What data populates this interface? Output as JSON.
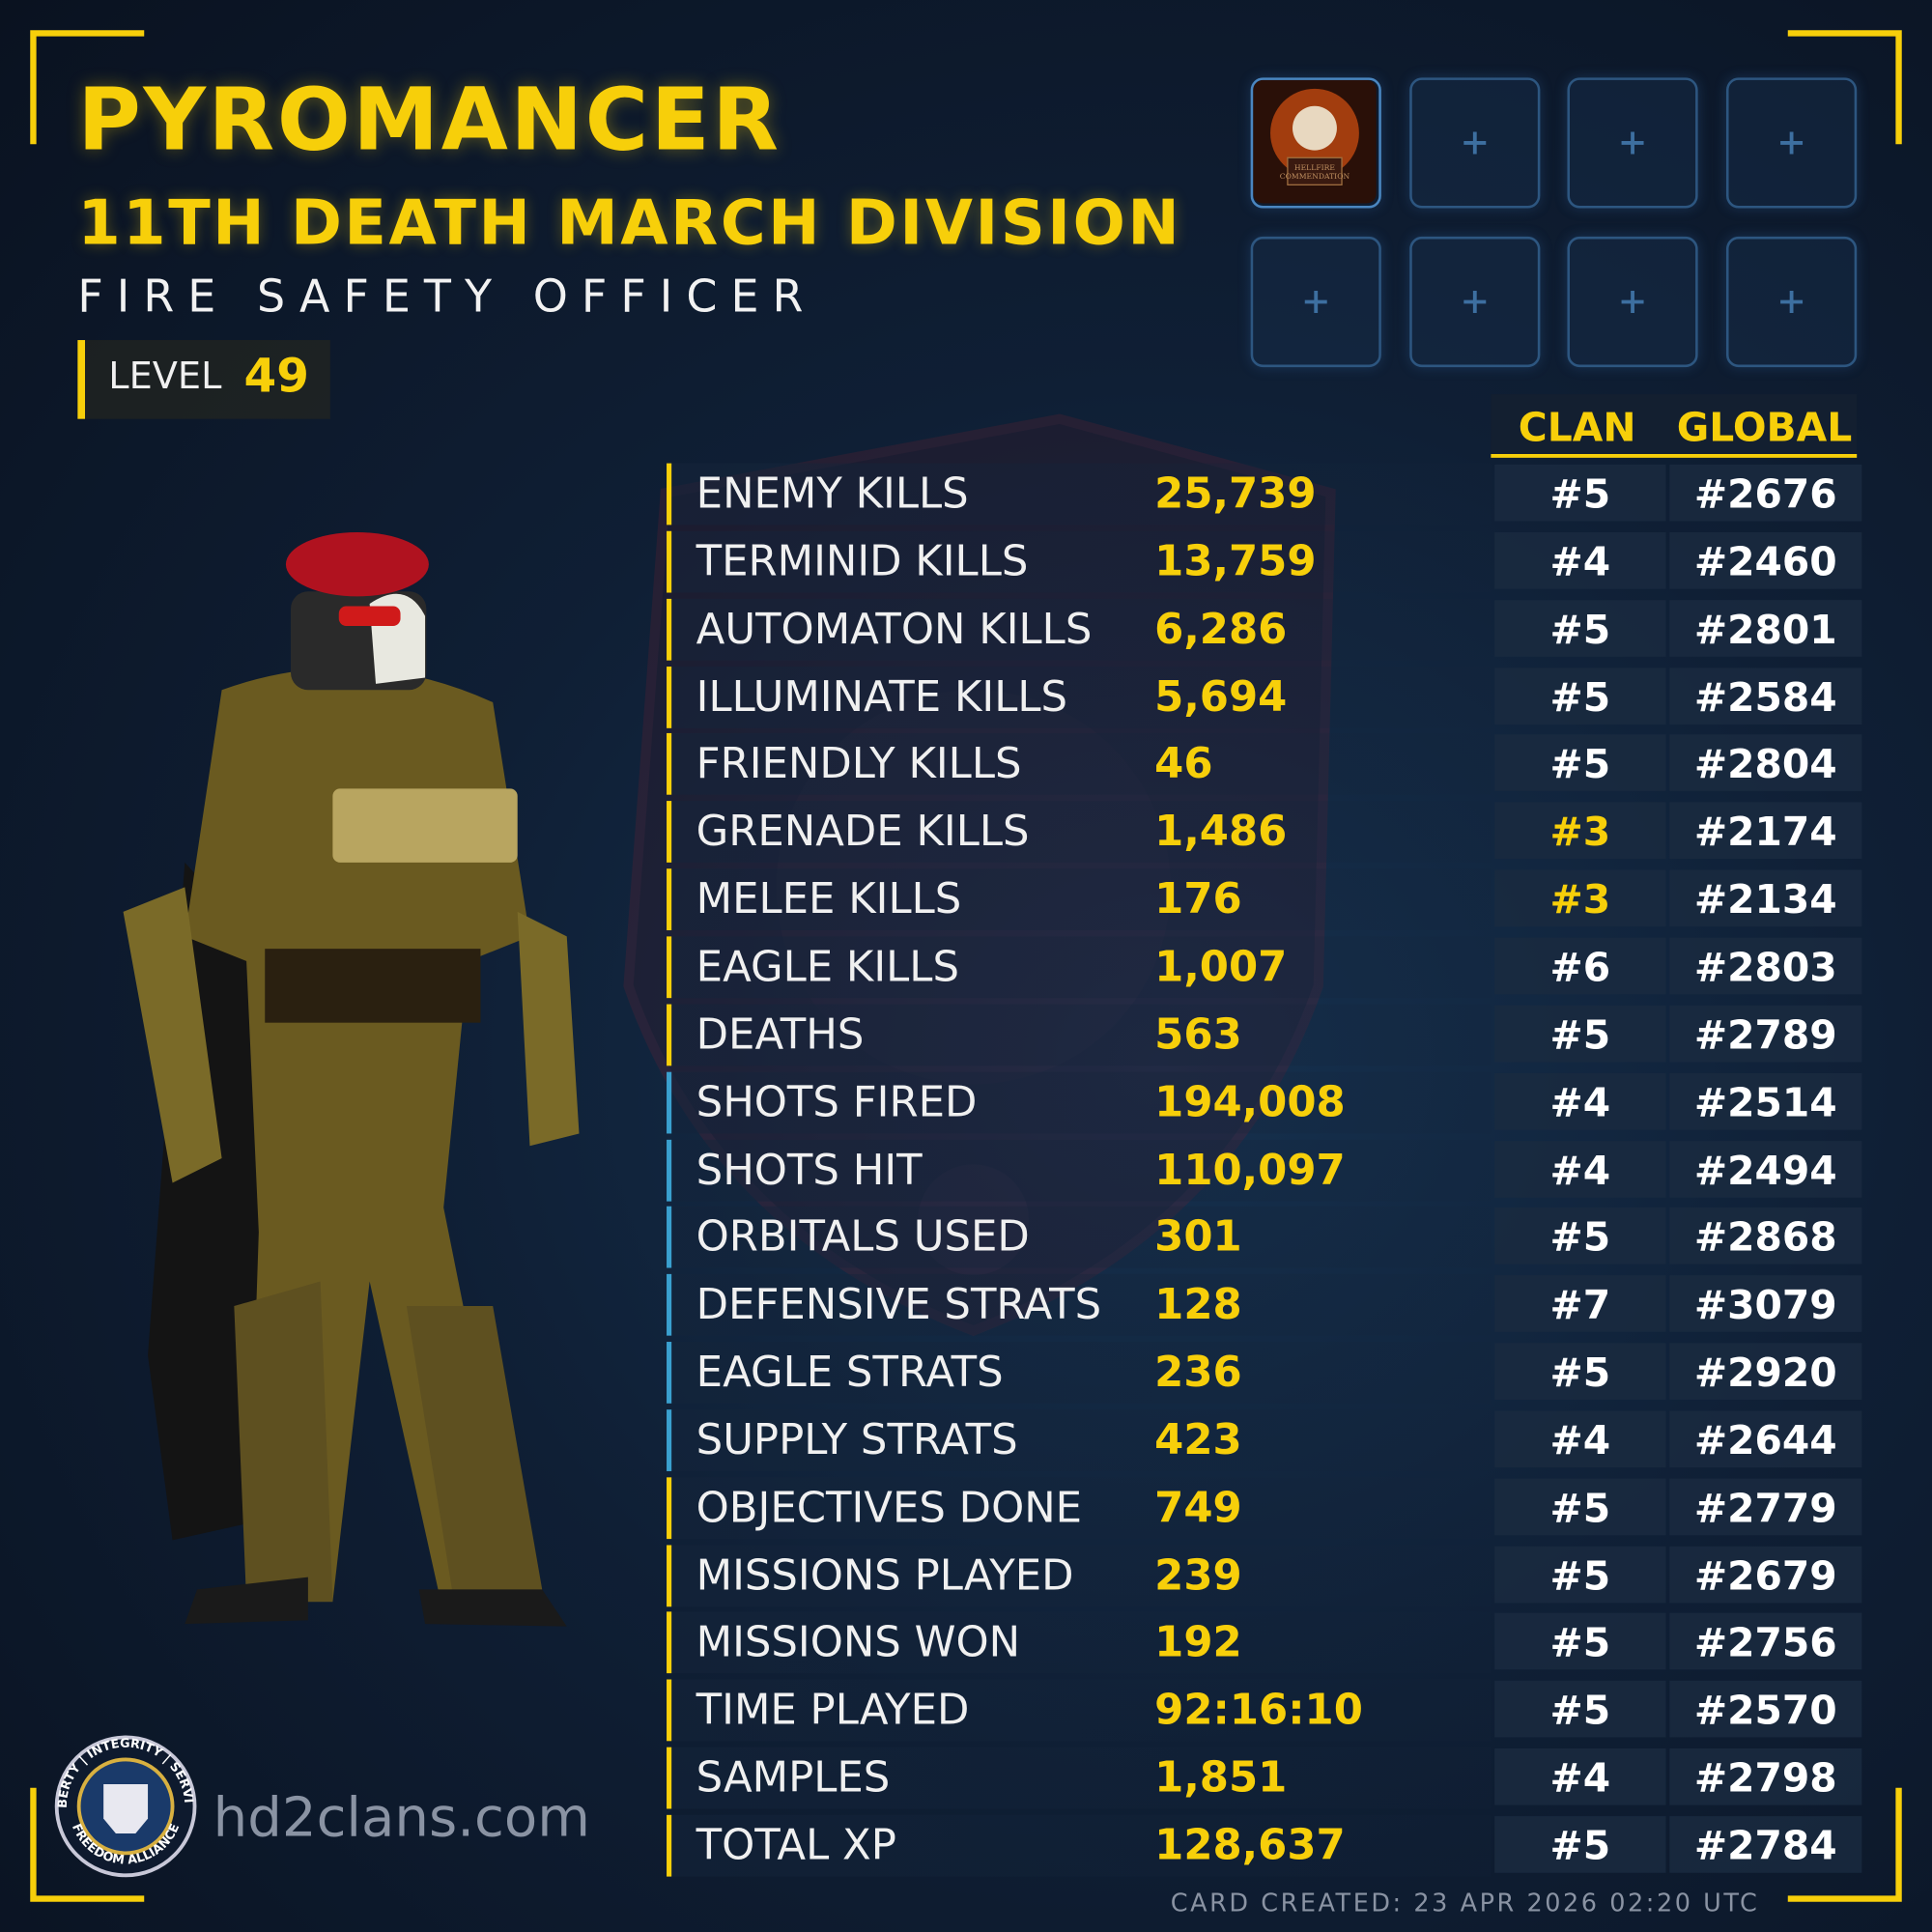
{
  "header": {
    "name": "PYROMANCER",
    "division": "11TH DEATH MARCH DIVISION",
    "title": "FIRE SAFETY OFFICER",
    "level_label": "LEVEL",
    "level": "49"
  },
  "badge": {
    "line1": "HELLFIRE",
    "line2": "COMMENDATION"
  },
  "table": {
    "columns": [
      "CLAN",
      "GLOBAL"
    ],
    "rows": [
      {
        "label": "ENEMY KILLS",
        "value": "25,739",
        "clan": "#5",
        "global": "#2676",
        "bar": "#f7cf0a",
        "clan_color": "#ffffff"
      },
      {
        "label": "TERMINID KILLS",
        "value": "13,759",
        "clan": "#4",
        "global": "#2460",
        "bar": "#f7cf0a",
        "clan_color": "#ffffff"
      },
      {
        "label": "AUTOMATON KILLS",
        "value": "6,286",
        "clan": "#5",
        "global": "#2801",
        "bar": "#f7cf0a",
        "clan_color": "#ffffff"
      },
      {
        "label": "ILLUMINATE KILLS",
        "value": "5,694",
        "clan": "#5",
        "global": "#2584",
        "bar": "#f7cf0a",
        "clan_color": "#ffffff"
      },
      {
        "label": "FRIENDLY KILLS",
        "value": "46",
        "clan": "#5",
        "global": "#2804",
        "bar": "#f7cf0a",
        "clan_color": "#ffffff"
      },
      {
        "label": "GRENADE KILLS",
        "value": "1,486",
        "clan": "#3",
        "global": "#2174",
        "bar": "#f7cf0a",
        "clan_color": "#f7cf0a"
      },
      {
        "label": "MELEE KILLS",
        "value": "176",
        "clan": "#3",
        "global": "#2134",
        "bar": "#f7cf0a",
        "clan_color": "#f7cf0a"
      },
      {
        "label": "EAGLE KILLS",
        "value": "1,007",
        "clan": "#6",
        "global": "#2803",
        "bar": "#f7cf0a",
        "clan_color": "#ffffff"
      },
      {
        "label": "DEATHS",
        "value": "563",
        "clan": "#5",
        "global": "#2789",
        "bar": "#f7cf0a",
        "clan_color": "#ffffff"
      },
      {
        "label": "SHOTS FIRED",
        "value": "194,008",
        "clan": "#4",
        "global": "#2514",
        "bar": "#3aa0cf",
        "clan_color": "#ffffff"
      },
      {
        "label": "SHOTS HIT",
        "value": "110,097",
        "clan": "#4",
        "global": "#2494",
        "bar": "#3aa0cf",
        "clan_color": "#ffffff"
      },
      {
        "label": "ORBITALS USED",
        "value": "301",
        "clan": "#5",
        "global": "#2868",
        "bar": "#3aa0cf",
        "clan_color": "#ffffff"
      },
      {
        "label": "DEFENSIVE STRATS",
        "value": "128",
        "clan": "#7",
        "global": "#3079",
        "bar": "#3aa0cf",
        "clan_color": "#ffffff"
      },
      {
        "label": "EAGLE STRATS",
        "value": "236",
        "clan": "#5",
        "global": "#2920",
        "bar": "#3aa0cf",
        "clan_color": "#ffffff"
      },
      {
        "label": "SUPPLY STRATS",
        "value": "423",
        "clan": "#4",
        "global": "#2644",
        "bar": "#3aa0cf",
        "clan_color": "#ffffff"
      },
      {
        "label": "OBJECTIVES DONE",
        "value": "749",
        "clan": "#5",
        "global": "#2779",
        "bar": "#f7cf0a",
        "clan_color": "#ffffff"
      },
      {
        "label": "MISSIONS PLAYED",
        "value": "239",
        "clan": "#5",
        "global": "#2679",
        "bar": "#f7cf0a",
        "clan_color": "#ffffff"
      },
      {
        "label": "MISSIONS WON",
        "value": "192",
        "clan": "#5",
        "global": "#2756",
        "bar": "#f7cf0a",
        "clan_color": "#ffffff"
      },
      {
        "label": "TIME PLAYED",
        "value": "92:16:10",
        "clan": "#5",
        "global": "#2570",
        "bar": "#f7cf0a",
        "clan_color": "#ffffff"
      },
      {
        "label": "SAMPLES",
        "value": "1,851",
        "clan": "#4",
        "global": "#2798",
        "bar": "#f7cf0a",
        "clan_color": "#ffffff"
      },
      {
        "label": "TOTAL XP",
        "value": "128,637",
        "clan": "#5",
        "global": "#2784",
        "bar": "#f7cf0a",
        "clan_color": "#ffffff"
      }
    ]
  },
  "logo": {
    "top": "LIBERTY | INTEGRITY | SERVICE",
    "bottom": "FREEDOM ALLIANCE"
  },
  "footer": {
    "site": "hd2clans.com",
    "created": "CARD CREATED: 23 APR 2026 02:20 UTC"
  }
}
